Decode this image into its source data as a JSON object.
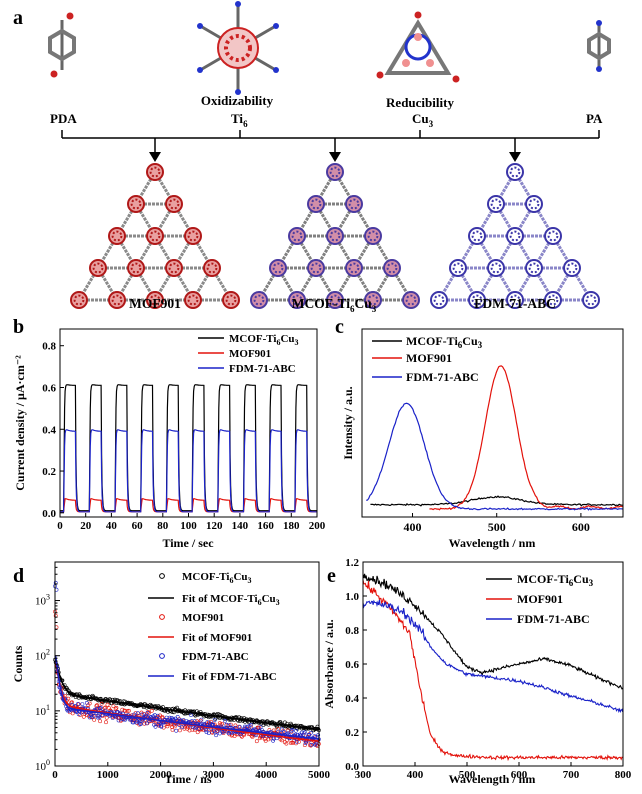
{
  "panel_a": {
    "label": "a",
    "linkers": [
      "PDA",
      "PA"
    ],
    "cluster_left": {
      "name": "Ti",
      "sub": "6",
      "property": "Oxidizability"
    },
    "cluster_right": {
      "name": "Cu",
      "sub": "3",
      "property": "Reducibility"
    },
    "products": [
      {
        "name": "MOF901"
      },
      {
        "name": "MCOF-Ti",
        "sub1": "6",
        "mid": "Cu",
        "sub2": "3"
      },
      {
        "name": "FDM-71-ABC"
      }
    ]
  },
  "legend_names": {
    "mcof": {
      "main": "MCOF-Ti",
      "s1": "6",
      "mid": "Cu",
      "s2": "3"
    },
    "mof901": "MOF901",
    "fdm": "FDM-71-ABC",
    "fit_prefix": "Fit of "
  },
  "colors": {
    "mcof": "#000000",
    "mof901": "#e3120b",
    "fdm": "#1a22c8"
  },
  "chart_data": [
    {
      "panel": "b",
      "type": "line",
      "xlabel": "Time / sec",
      "ylabel": "Current density / μA·cm⁻²",
      "xlim": [
        0,
        200
      ],
      "ylim": [
        -0.02,
        0.88
      ],
      "xticks": [
        0,
        20,
        40,
        60,
        80,
        100,
        120,
        140,
        160,
        180,
        200
      ],
      "yticks": [
        0.0,
        0.2,
        0.4,
        0.6,
        0.8
      ],
      "legend": "top-right",
      "on_off": {
        "period": 20,
        "first_on": 3,
        "on_duration": 9
      },
      "series": [
        {
          "key": "mcof",
          "baseline": 0.01,
          "plateau": 0.61,
          "peak": 0.62
        },
        {
          "key": "mof901",
          "baseline": 0.005,
          "plateau": 0.06,
          "peak": 0.075
        },
        {
          "key": "fdm",
          "baseline": 0.005,
          "plateau": 0.39,
          "peak": 0.41
        }
      ]
    },
    {
      "panel": "c",
      "type": "line",
      "xlabel": "Wavelength / nm",
      "ylabel": "Intensity / a.u.",
      "xlim": [
        340,
        650
      ],
      "xticks": [
        400,
        500,
        600
      ],
      "yticks_labeled": false,
      "legend": "top-left",
      "series": [
        {
          "key": "mcof",
          "peaks": [
            {
              "x": 500,
              "y": 0.055,
              "w": 40
            }
          ],
          "base": 0.03
        },
        {
          "key": "mof901",
          "peaks": [
            {
              "x": 505,
              "y": 1.0,
              "w": 26
            }
          ],
          "base": 0.015
        },
        {
          "key": "fdm",
          "peaks": [
            {
              "x": 393,
              "y": 0.74,
              "w": 30
            }
          ],
          "base": 0.0
        }
      ]
    },
    {
      "panel": "d",
      "type": "scatter",
      "xlabel": "Time / ns",
      "ylabel": "Counts",
      "xlim": [
        0,
        5000
      ],
      "ylog": [
        1,
        5000
      ],
      "xticks": [
        0,
        1000,
        2000,
        3000,
        4000,
        5000
      ],
      "yticks": [
        1,
        10,
        100,
        1000
      ],
      "legend": "top-right",
      "series": [
        {
          "key": "mcof",
          "y0": 100,
          "a1": 70,
          "t1": 80,
          "a2": 20,
          "t2": 3000,
          "noise": 0.07
        },
        {
          "key": "mof901",
          "y0": 90,
          "a1": 80,
          "t1": 60,
          "a2": 12,
          "t2": 2800,
          "noise": 0.22
        },
        {
          "key": "fdm",
          "y0": 120,
          "a1": 110,
          "t1": 50,
          "a2": 11,
          "t2": 3200,
          "noise": 0.18
        }
      ]
    },
    {
      "panel": "e",
      "type": "line",
      "xlabel": "Wavelength / nm",
      "ylabel": "Absorbance / a.u.",
      "xlim": [
        300,
        800
      ],
      "ylim": [
        0,
        1.2
      ],
      "xticks": [
        300,
        400,
        500,
        600,
        700,
        800
      ],
      "yticks": [
        0.0,
        0.2,
        0.4,
        0.6,
        0.8,
        1.0,
        1.2
      ],
      "legend": "top-right",
      "series": [
        {
          "key": "mcof",
          "points": [
            [
              300,
              1.13
            ],
            [
              350,
              1.06
            ],
            [
              400,
              0.95
            ],
            [
              450,
              0.78
            ],
            [
              500,
              0.58
            ],
            [
              530,
              0.55
            ],
            [
              600,
              0.6
            ],
            [
              650,
              0.63
            ],
            [
              700,
              0.59
            ],
            [
              750,
              0.52
            ],
            [
              800,
              0.46
            ]
          ]
        },
        {
          "key": "mof901",
          "points": [
            [
              300,
              1.08
            ],
            [
              330,
              1.0
            ],
            [
              360,
              0.9
            ],
            [
              390,
              0.78
            ],
            [
              410,
              0.45
            ],
            [
              430,
              0.18
            ],
            [
              450,
              0.09
            ],
            [
              480,
              0.06
            ],
            [
              550,
              0.05
            ],
            [
              800,
              0.05
            ]
          ]
        },
        {
          "key": "fdm",
          "points": [
            [
              300,
              0.96
            ],
            [
              340,
              0.95
            ],
            [
              380,
              0.9
            ],
            [
              410,
              0.8
            ],
            [
              430,
              0.7
            ],
            [
              460,
              0.6
            ],
            [
              500,
              0.54
            ],
            [
              550,
              0.52
            ],
            [
              600,
              0.5
            ],
            [
              650,
              0.46
            ],
            [
              700,
              0.41
            ],
            [
              750,
              0.37
            ],
            [
              800,
              0.32
            ]
          ]
        }
      ]
    }
  ],
  "panel_labels": [
    "b",
    "c",
    "d",
    "e"
  ]
}
